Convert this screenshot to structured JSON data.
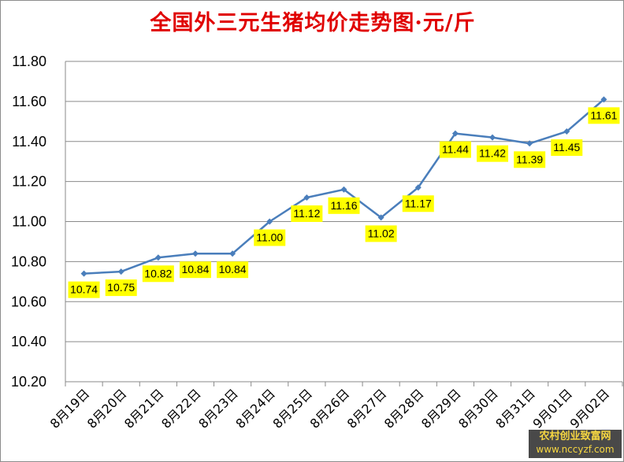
{
  "chart_data": {
    "type": "line",
    "title": "全国外三元生猪均价走势图·元/斤",
    "categories": [
      "8月19日",
      "8月20日",
      "8月21日",
      "8月22日",
      "8月23日",
      "8月24日",
      "8月25日",
      "8月26日",
      "8月27日",
      "8月28日",
      "8月29日",
      "8月30日",
      "8月31日",
      "9月01日",
      "9月02日"
    ],
    "values": [
      10.74,
      10.75,
      10.82,
      10.84,
      10.84,
      11.0,
      11.12,
      11.16,
      11.02,
      11.17,
      11.44,
      11.42,
      11.39,
      11.45,
      11.61
    ],
    "data_labels": [
      "10.74",
      "10.75",
      "10.82",
      "10.84",
      "10.84",
      "11.00",
      "11.12",
      "11.16",
      "11.02",
      "11.17",
      "11.44",
      "11.42",
      "11.39",
      "11.45",
      "11.61"
    ],
    "y_ticks": [
      "10.20",
      "10.40",
      "10.60",
      "10.80",
      "11.00",
      "11.20",
      "11.40",
      "11.60",
      "11.80"
    ],
    "ylim": [
      10.2,
      11.8
    ],
    "grid": true,
    "colors": {
      "line": "#4a7ebb",
      "label_bg": "#ffff00",
      "title": "#e00000"
    }
  },
  "watermark": {
    "line1": "农村创业致富网",
    "line2": "www.nccyzf.com"
  }
}
